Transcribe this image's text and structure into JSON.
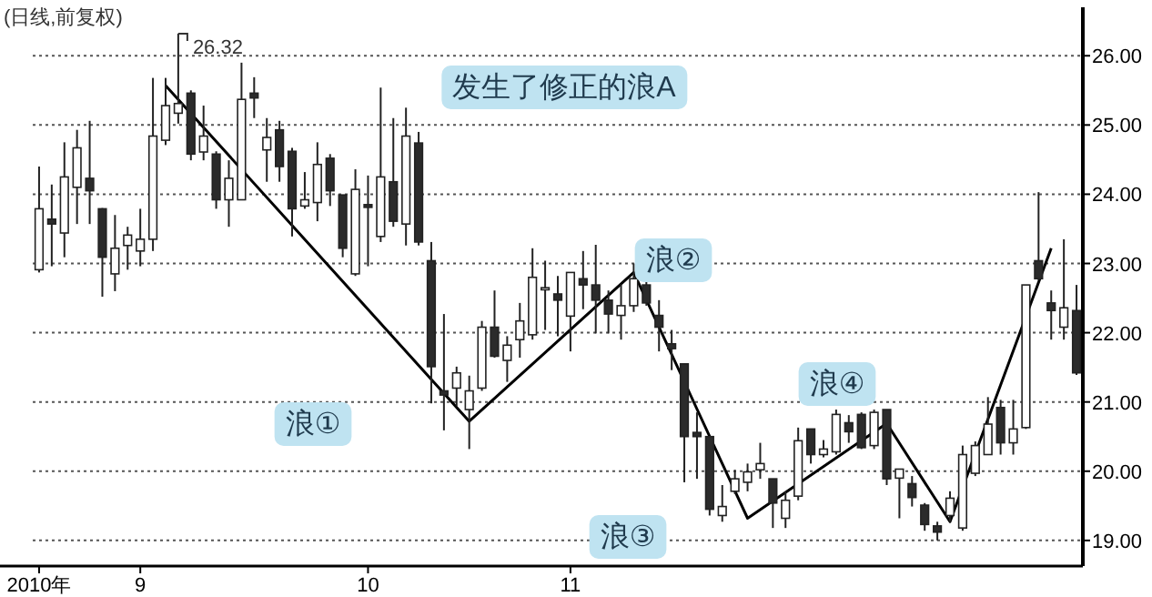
{
  "chart_data": {
    "type": "candlestick",
    "title": "(日线,前复权)",
    "categories": [
      "2010年",
      null,
      null,
      null,
      null,
      null,
      null,
      null,
      "9",
      null,
      null,
      null,
      null,
      null,
      null,
      null,
      null,
      null,
      null,
      null,
      null,
      null,
      null,
      null,
      null,
      null,
      "10",
      null,
      null,
      null,
      null,
      null,
      null,
      null,
      null,
      null,
      null,
      null,
      null,
      null,
      null,
      null,
      "11",
      null,
      null,
      null,
      null,
      null,
      null,
      null,
      null,
      null,
      null,
      null,
      null,
      null,
      null,
      null,
      null,
      null,
      null,
      null,
      null,
      null,
      null,
      null,
      null,
      null,
      null,
      null,
      null,
      null,
      null,
      null,
      null,
      null,
      null,
      null,
      null,
      null,
      null,
      null,
      null
    ],
    "ohlc": [
      [
        22.91,
        24.4,
        22.87,
        23.79
      ],
      [
        23.64,
        24.14,
        22.96,
        23.57
      ],
      [
        23.44,
        24.75,
        23.09,
        24.25
      ],
      [
        24.1,
        24.93,
        23.57,
        24.67
      ],
      [
        24.23,
        25.06,
        23.57,
        24.05
      ],
      [
        23.79,
        23.8,
        22.52,
        23.09
      ],
      [
        22.85,
        23.7,
        22.6,
        23.22
      ],
      [
        23.26,
        23.53,
        22.91,
        23.41
      ],
      [
        23.18,
        23.79,
        22.96,
        23.35
      ],
      [
        23.35,
        25.68,
        23.18,
        24.84
      ],
      [
        24.78,
        25.68,
        24.71,
        25.28
      ],
      [
        25.17,
        26.32,
        25.02,
        25.31
      ],
      [
        25.46,
        25.5,
        24.49,
        24.58
      ],
      [
        24.61,
        25.28,
        24.49,
        24.84
      ],
      [
        24.58,
        24.62,
        23.79,
        23.92
      ],
      [
        23.92,
        24.49,
        23.53,
        24.23
      ],
      [
        23.92,
        25.9,
        23.92,
        25.37
      ],
      [
        25.46,
        25.69,
        25.1,
        25.39
      ],
      [
        24.64,
        25.1,
        24.18,
        24.82
      ],
      [
        24.93,
        25.06,
        24.18,
        24.4
      ],
      [
        24.62,
        24.67,
        23.39,
        23.79
      ],
      [
        23.83,
        24.32,
        23.79,
        23.92
      ],
      [
        23.88,
        24.75,
        23.61,
        24.43
      ],
      [
        24.52,
        24.58,
        23.83,
        24.05
      ],
      [
        23.99,
        23.99,
        23.09,
        23.22
      ],
      [
        22.85,
        24.36,
        22.82,
        24.07
      ],
      [
        23.85,
        24.27,
        22.96,
        23.81
      ],
      [
        23.39,
        25.54,
        23.31,
        24.25
      ],
      [
        24.18,
        25.1,
        23.53,
        23.61
      ],
      [
        23.57,
        25.25,
        23.26,
        24.84
      ],
      [
        24.74,
        24.9,
        23.26,
        23.31
      ],
      [
        23.04,
        23.31,
        20.98,
        21.51
      ],
      [
        21.16,
        22.27,
        20.59,
        21.1
      ],
      [
        21.2,
        21.51,
        20.94,
        21.42
      ],
      [
        20.89,
        21.38,
        20.32,
        21.16
      ],
      [
        21.2,
        22.17,
        21.16,
        22.08
      ],
      [
        22.08,
        22.61,
        21.64,
        21.66
      ],
      [
        21.6,
        21.95,
        21.29,
        21.82
      ],
      [
        21.9,
        22.43,
        21.64,
        22.17
      ],
      [
        21.97,
        23.22,
        21.9,
        22.8
      ],
      [
        22.62,
        23.04,
        22.04,
        22.65
      ],
      [
        22.56,
        22.82,
        21.95,
        22.47
      ],
      [
        22.24,
        22.87,
        21.73,
        22.87
      ],
      [
        22.78,
        23.18,
        22.34,
        22.69
      ],
      [
        22.69,
        23.27,
        21.99,
        22.47
      ],
      [
        22.47,
        22.61,
        21.99,
        22.27
      ],
      [
        22.25,
        22.7,
        21.9,
        22.39
      ],
      [
        22.39,
        23.0,
        22.3,
        22.78
      ],
      [
        22.69,
        22.78,
        22.39,
        22.43
      ],
      [
        22.25,
        22.47,
        21.73,
        22.08
      ],
      [
        21.84,
        22.04,
        21.46,
        21.77
      ],
      [
        21.55,
        21.55,
        19.84,
        20.5
      ],
      [
        20.56,
        20.85,
        19.89,
        20.5
      ],
      [
        20.5,
        20.5,
        19.36,
        19.45
      ],
      [
        19.36,
        19.8,
        19.27,
        19.49
      ],
      [
        19.71,
        20.02,
        19.67,
        19.89
      ],
      [
        19.84,
        20.11,
        19.71,
        19.99
      ],
      [
        20.02,
        20.41,
        19.89,
        20.11
      ],
      [
        19.89,
        19.89,
        19.18,
        19.54
      ],
      [
        19.32,
        19.71,
        19.18,
        19.58
      ],
      [
        19.64,
        20.63,
        19.58,
        20.44
      ],
      [
        20.61,
        20.61,
        20.11,
        20.24
      ],
      [
        20.24,
        20.45,
        20.2,
        20.32
      ],
      [
        20.28,
        20.89,
        20.24,
        20.82
      ],
      [
        20.7,
        20.81,
        20.41,
        20.57
      ],
      [
        20.82,
        20.85,
        20.32,
        20.34
      ],
      [
        20.37,
        20.89,
        20.32,
        20.85
      ],
      [
        20.89,
        20.89,
        19.8,
        19.89
      ],
      [
        19.9,
        20.03,
        19.32,
        20.03
      ],
      [
        19.82,
        19.93,
        19.49,
        19.62
      ],
      [
        19.51,
        19.54,
        19.14,
        19.23
      ],
      [
        19.21,
        19.27,
        19.0,
        19.12
      ],
      [
        19.36,
        19.71,
        19.27,
        19.61
      ],
      [
        19.18,
        20.37,
        19.14,
        20.24
      ],
      [
        19.97,
        20.43,
        19.93,
        20.37
      ],
      [
        20.24,
        21.07,
        20.24,
        20.68
      ],
      [
        20.92,
        21.03,
        20.24,
        20.41
      ],
      [
        20.41,
        21.03,
        20.24,
        20.61
      ],
      [
        20.63,
        22.69,
        20.61,
        22.69
      ],
      [
        23.04,
        24.03,
        22.76,
        22.78
      ],
      [
        22.43,
        22.61,
        21.9,
        22.32
      ],
      [
        22.08,
        23.35,
        21.9,
        22.36
      ],
      [
        22.32,
        22.69,
        21.39,
        21.42
      ]
    ],
    "series": [
      {
        "type": "line",
        "color": "#000000",
        "values": [
          null,
          null,
          null,
          null,
          null,
          null,
          null,
          null,
          null,
          null,
          25.57,
          null,
          null,
          null,
          null,
          null,
          null,
          null,
          null,
          null,
          null,
          null,
          null,
          null,
          null,
          null,
          null,
          null,
          null,
          null,
          null,
          null,
          null,
          null,
          20.72,
          null,
          null,
          null,
          null,
          null,
          null,
          null,
          null,
          null,
          null,
          null,
          null,
          22.87,
          null,
          null,
          null,
          null,
          null,
          null,
          null,
          null,
          19.32,
          null,
          null,
          null,
          null,
          null,
          null,
          null,
          null,
          null,
          null,
          20.69,
          null,
          null,
          null,
          null,
          19.27,
          null,
          null,
          null,
          null,
          null,
          null,
          null,
          23.22,
          null,
          null
        ]
      }
    ],
    "ylim": [
      18.63,
      26.7
    ],
    "yticks": [
      {
        "value": 19,
        "label": "19.00"
      },
      {
        "value": 20,
        "label": "20.00"
      },
      {
        "value": 21,
        "label": "21.00"
      },
      {
        "value": 22,
        "label": "22.00"
      },
      {
        "value": 23,
        "label": "23.00"
      },
      {
        "value": 24,
        "label": "24.00"
      },
      {
        "value": 25,
        "label": "25.00"
      },
      {
        "value": 26,
        "label": "26.00"
      }
    ],
    "grid": "y",
    "annotations": [
      "26.32",
      "发生了修正的浪A",
      "浪①",
      "浪②",
      "浪③",
      "浪④"
    ]
  }
}
